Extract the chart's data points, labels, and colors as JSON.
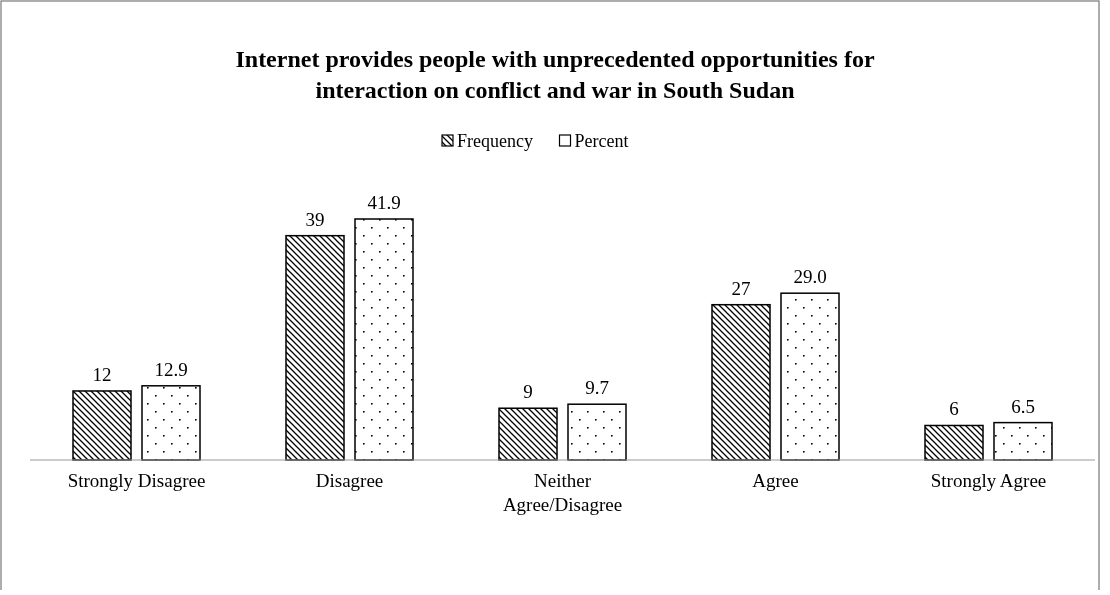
{
  "chart_data": {
    "type": "bar",
    "title": "Internet provides people with unprecedented opportunities for interaction on conflict and war in South Sudan",
    "categories": [
      "Strongly Disagree",
      "Disagree",
      "Neither Agree/Disagree",
      "Agree",
      "Strongly Agree"
    ],
    "series": [
      {
        "name": "Frequency",
        "color": "#000000",
        "values": [
          12,
          39,
          9,
          27,
          6
        ],
        "value_labels": [
          "12",
          "39",
          "9",
          "27",
          "6"
        ]
      },
      {
        "name": "Percent",
        "color": "#000000",
        "values": [
          12.9,
          41.9,
          9.7,
          29.0,
          6.5
        ],
        "value_labels": [
          "12.9",
          "41.9",
          "9.7",
          "29.0",
          "6.5"
        ]
      }
    ],
    "legend": "top"
  }
}
